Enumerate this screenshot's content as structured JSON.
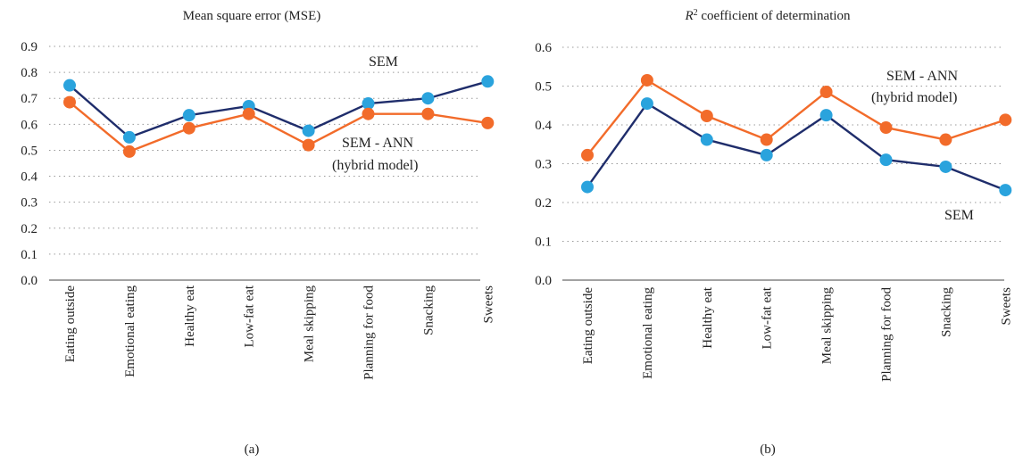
{
  "chart_data": [
    {
      "type": "line",
      "title": "Mean square error (MSE)",
      "caption": "(a)",
      "categories": [
        "Eating outside",
        "Emotional eating",
        "Healthy eat",
        "Low-fat eat",
        "Meal skipping",
        "Planning for food",
        "Snacking",
        "Sweets"
      ],
      "ylim": [
        0,
        0.9
      ],
      "yticks": [
        "0.0",
        "0.1",
        "0.2",
        "0.3",
        "0.4",
        "0.5",
        "0.6",
        "0.7",
        "0.8",
        "0.9"
      ],
      "grid": true,
      "series": [
        {
          "name": "SEM",
          "color": "#1f2d6b",
          "marker_color": "#2aa3dd",
          "values": [
            0.75,
            0.55,
            0.635,
            0.67,
            0.575,
            0.68,
            0.7,
            0.765
          ]
        },
        {
          "name": "SEM - ANN (hybrid model)",
          "color": "#f26b2a",
          "marker_color": "#f26b2a",
          "values": [
            0.685,
            0.495,
            0.585,
            0.64,
            0.52,
            0.64,
            0.64,
            0.605
          ]
        }
      ],
      "annotations": [
        {
          "lines": [
            "SEM"
          ]
        },
        {
          "lines": [
            "SEM - ANN",
            "(hybrid model)"
          ]
        }
      ]
    },
    {
      "type": "line",
      "title_main": "R",
      "title_sup": "2",
      "title_rest": " coefficient of determination",
      "caption": "(b)",
      "categories": [
        "Eating outside",
        "Emotional eating",
        "Healthy eat",
        "Low-fat eat",
        "Meal skipping",
        "Planning for food",
        "Snacking",
        "Sweets"
      ],
      "ylim": [
        0,
        0.6
      ],
      "yticks": [
        "0.0",
        "0.1",
        "0.2",
        "0.3",
        "0.4",
        "0.5",
        "0.6"
      ],
      "grid": true,
      "series": [
        {
          "name": "SEM",
          "color": "#1f2d6b",
          "marker_color": "#2aa3dd",
          "values": [
            0.24,
            0.455,
            0.362,
            0.322,
            0.425,
            0.31,
            0.292,
            0.232
          ]
        },
        {
          "name": "SEM - ANN (hybrid model)",
          "color": "#f26b2a",
          "marker_color": "#f26b2a",
          "values": [
            0.322,
            0.515,
            0.423,
            0.362,
            0.485,
            0.393,
            0.362,
            0.413
          ]
        }
      ],
      "annotations": [
        {
          "lines": [
            "SEM - ANN",
            "(hybrid model)"
          ]
        },
        {
          "lines": [
            "SEM"
          ]
        }
      ]
    }
  ]
}
